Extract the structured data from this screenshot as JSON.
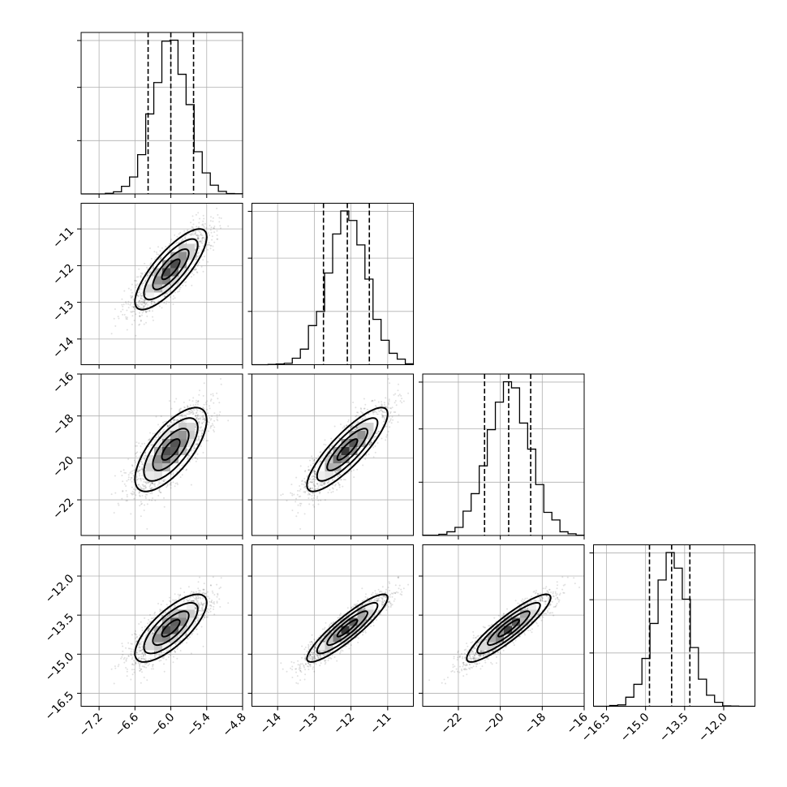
{
  "chart_data": {
    "type": "corner",
    "grid": true,
    "parameters": [
      {
        "range": [
          -7.5,
          -4.8
        ],
        "ticks": [
          -7.2,
          -6.6,
          -6.0,
          -5.4,
          -4.8
        ],
        "tick_labels": [
          "−7.2",
          "−6.6",
          "−6.0",
          "−5.4",
          "−4.8"
        ],
        "mean": -6.0,
        "sd": 0.3,
        "quantiles": [
          -6.38,
          -6.0,
          -5.62
        ]
      },
      {
        "range": [
          -14.7,
          -10.3
        ],
        "ticks": [
          -14,
          -13,
          -12,
          -11
        ],
        "tick_labels": [
          "−14",
          "−13",
          "−12",
          "−11"
        ],
        "mean": -12.1,
        "sd": 0.55,
        "quantiles": [
          -12.75,
          -12.1,
          -11.5
        ]
      },
      {
        "range": [
          -23.7,
          -16.0
        ],
        "ticks": [
          -22,
          -20,
          -18,
          -16
        ],
        "tick_labels": [
          "−22",
          "−20",
          "−18",
          "−16"
        ],
        "mean": -19.6,
        "sd": 1.0,
        "quantiles": [
          -20.75,
          -19.6,
          -18.55
        ]
      },
      {
        "range": [
          -17.0,
          -10.8
        ],
        "ticks": [
          -16.5,
          -15.0,
          -13.5,
          -12.0
        ],
        "tick_labels": [
          "−16.5",
          "−15.0",
          "−13.5",
          "−12.0"
        ],
        "mean": -14.0,
        "sd": 0.65,
        "quantiles": [
          -14.85,
          -14.0,
          -13.3
        ]
      }
    ],
    "correlations": [
      [
        0,
        1,
        0.8
      ],
      [
        0,
        2,
        0.7
      ],
      [
        0,
        3,
        0.75
      ],
      [
        1,
        2,
        0.85
      ],
      [
        1,
        3,
        0.9
      ],
      [
        2,
        3,
        0.9
      ]
    ],
    "contour_levels_sigma": [
      0.5,
      1.0,
      1.5,
      2.0
    ],
    "histogram_bins": 20,
    "samples": 4000
  },
  "colors": {
    "axes": "#000000",
    "grid": "#b0b0b0",
    "points": "#000000"
  }
}
